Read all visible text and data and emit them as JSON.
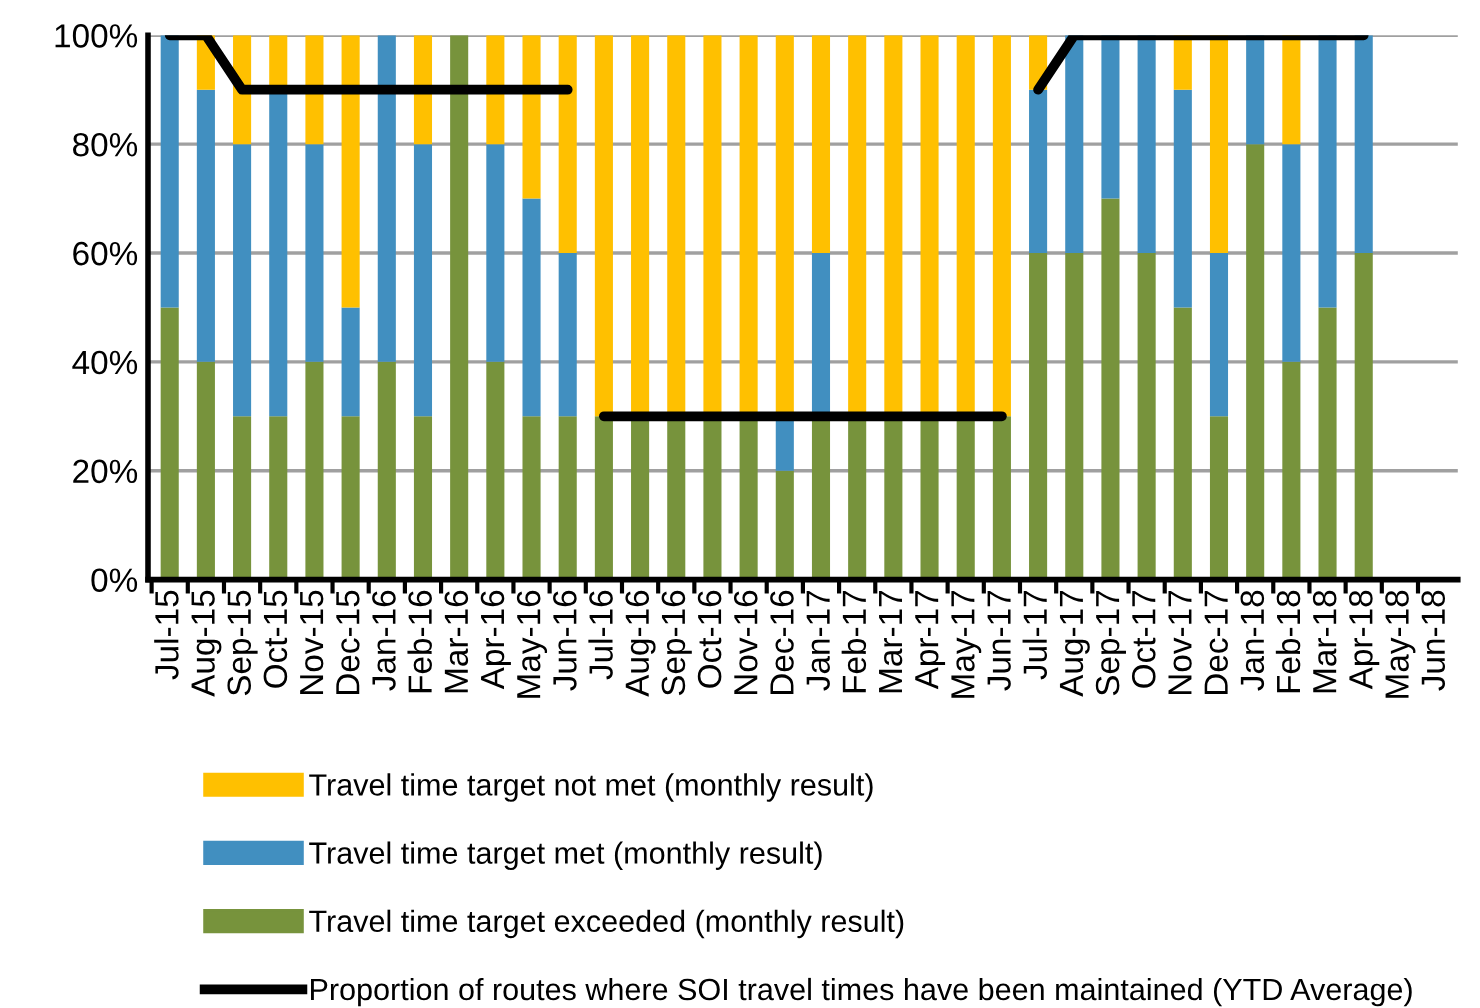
{
  "chart_data": {
    "type": "bar",
    "stacked": true,
    "categories": [
      "Jul-15",
      "Aug-15",
      "Sep-15",
      "Oct-15",
      "Nov-15",
      "Dec-15",
      "Jan-16",
      "Feb-16",
      "Mar-16",
      "Apr-16",
      "May-16",
      "Jun-16",
      "Jul-16",
      "Aug-16",
      "Sep-16",
      "Oct-16",
      "Nov-16",
      "Dec-16",
      "Jan-17",
      "Feb-17",
      "Mar-17",
      "Apr-17",
      "May-17",
      "Jun-17",
      "Jul-17",
      "Aug-17",
      "Sep-17",
      "Oct-17",
      "Nov-17",
      "Dec-17",
      "Jan-18",
      "Feb-18",
      "Mar-18",
      "Apr-18",
      "May-18",
      "Jun-18"
    ],
    "series": [
      {
        "name": "Travel time target exceeded (monthly result)",
        "color": "#77933c",
        "values": [
          50,
          40,
          30,
          30,
          40,
          30,
          40,
          30,
          100,
          40,
          30,
          30,
          30,
          30,
          30,
          30,
          30,
          20,
          30,
          30,
          30,
          30,
          30,
          30,
          60,
          60,
          70,
          60,
          50,
          30,
          80,
          40,
          50,
          60,
          null,
          null
        ]
      },
      {
        "name": "Travel time target met (monthly result)",
        "color": "#418fc0",
        "values": [
          50,
          50,
          50,
          60,
          40,
          20,
          60,
          50,
          0,
          40,
          40,
          30,
          0,
          0,
          0,
          0,
          0,
          10,
          30,
          0,
          0,
          0,
          0,
          0,
          30,
          40,
          30,
          40,
          40,
          30,
          20,
          40,
          50,
          40,
          null,
          null
        ]
      },
      {
        "name": "Travel time target not met (monthly result)",
        "color": "#ffc000",
        "values": [
          0,
          10,
          20,
          10,
          20,
          50,
          0,
          20,
          0,
          20,
          30,
          40,
          70,
          70,
          70,
          70,
          70,
          70,
          40,
          70,
          70,
          70,
          70,
          70,
          10,
          0,
          0,
          0,
          10,
          40,
          0,
          20,
          0,
          0,
          null,
          null
        ]
      },
      {
        "type": "line",
        "name": "Proportion of routes where SOI travel times have been maintained (YTD Average)",
        "color": "#000000",
        "values": [
          100,
          100,
          90,
          90,
          90,
          90,
          90,
          90,
          90,
          90,
          90,
          90,
          null,
          null,
          null,
          null,
          null,
          null,
          null,
          null,
          null,
          null,
          null,
          null,
          null,
          null,
          null,
          null,
          null,
          null,
          null,
          null,
          null,
          null,
          null,
          null
        ]
      },
      {
        "type": "line",
        "color": "#000000",
        "values": [
          null,
          null,
          null,
          null,
          null,
          null,
          null,
          null,
          null,
          null,
          null,
          null,
          30,
          30,
          30,
          30,
          30,
          30,
          30,
          30,
          30,
          30,
          30,
          30,
          null,
          null,
          null,
          null,
          null,
          null,
          null,
          null,
          null,
          null,
          null,
          null
        ]
      },
      {
        "type": "line",
        "color": "#000000",
        "values": [
          null,
          null,
          null,
          null,
          null,
          null,
          null,
          null,
          null,
          null,
          null,
          null,
          null,
          null,
          null,
          null,
          null,
          null,
          null,
          null,
          null,
          null,
          null,
          null,
          90,
          100,
          100,
          100,
          100,
          100,
          100,
          100,
          100,
          100,
          null,
          null
        ]
      }
    ],
    "ylim": [
      0,
      100
    ],
    "yticks": [
      {
        "value": 0,
        "label": "0%"
      },
      {
        "value": 20,
        "label": "20%"
      },
      {
        "value": 40,
        "label": "40%"
      },
      {
        "value": 60,
        "label": "60%"
      },
      {
        "value": 80,
        "label": "80%"
      },
      {
        "value": 100,
        "label": "100%"
      }
    ],
    "grid": "y",
    "legend": "bottom",
    "marker": "none",
    "line_style": "solid"
  }
}
